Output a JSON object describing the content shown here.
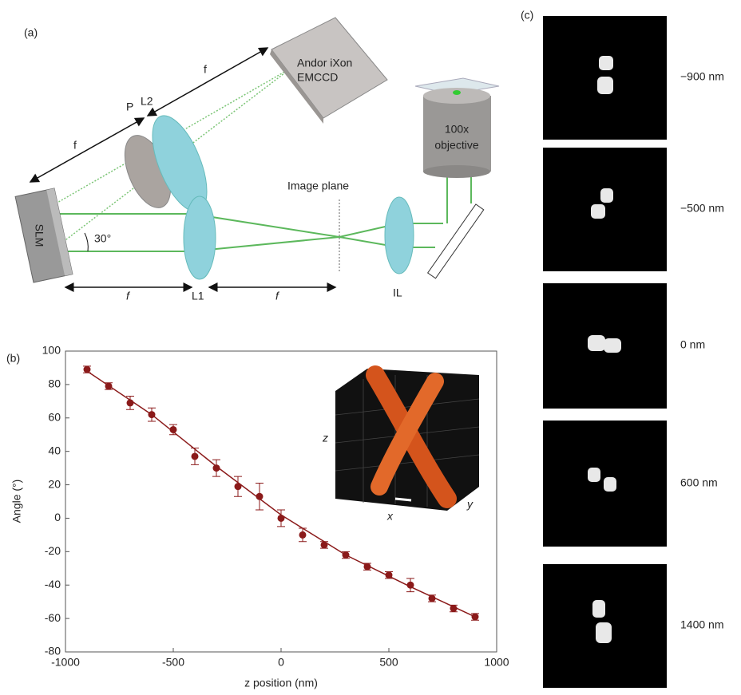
{
  "diagram": {
    "panel_label": "(a)",
    "camera_line1": "Andor iXon",
    "camera_line2": "EMCCD",
    "focal_labels": [
      "f",
      "f",
      "f",
      "f"
    ],
    "polarizer": "P",
    "lens2": "L2",
    "slm": "SLM",
    "angle": "30°",
    "image_plane": "Image plane",
    "objective_line1": "100x",
    "objective_line2": "objective",
    "lens_il": "IL",
    "lens1": "L1"
  },
  "chart_data": {
    "type": "scatter",
    "panel_label": "(b)",
    "x_label": "z position (nm)",
    "y_label": "Angle (°)",
    "x": [
      -900,
      -800,
      -700,
      -600,
      -500,
      -400,
      -300,
      -200,
      -100,
      0,
      100,
      200,
      300,
      400,
      500,
      600,
      700,
      800,
      900
    ],
    "values": [
      89,
      79,
      69,
      62,
      53,
      37,
      30,
      19,
      13,
      0,
      -10,
      -16,
      -22,
      -29,
      -34,
      -40,
      -48,
      -54,
      -59
    ],
    "errors": [
      2,
      2,
      4,
      4,
      3,
      5,
      5,
      6,
      8,
      5,
      4,
      2,
      2,
      2,
      2,
      4,
      2,
      2,
      2
    ],
    "color": "#8b1a1a",
    "fit": {
      "x": [
        -900,
        -600,
        -300,
        0,
        300,
        600,
        900
      ],
      "values": [
        88,
        62,
        31,
        2,
        -22,
        -41,
        -59
      ]
    },
    "xlim": [
      -1000,
      1000
    ],
    "xticks": [
      -1000,
      -500,
      0,
      500,
      1000
    ],
    "ylim": [
      -80,
      100
    ],
    "yticks": [
      -80,
      -60,
      -40,
      -20,
      0,
      20,
      40,
      60,
      80,
      100
    ],
    "grid": false,
    "inset_axis_labels": [
      "z",
      "x",
      "y"
    ]
  },
  "images": {
    "panel_label": "(c)",
    "labels": [
      "−900 nm",
      "−500 nm",
      "0 nm",
      "600 nm",
      "1400 nm"
    ]
  }
}
